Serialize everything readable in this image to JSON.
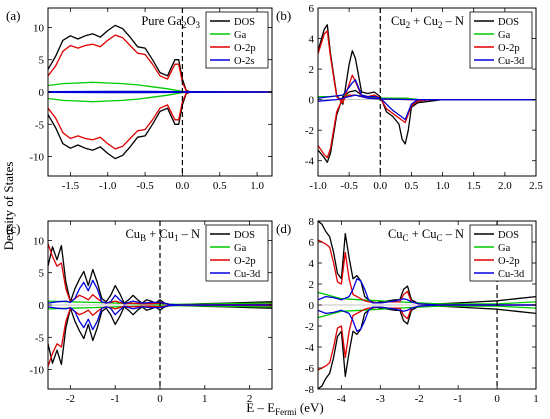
{
  "figure": {
    "ylabel": "Density of States",
    "xlabel_prefix": "E – E",
    "xlabel_sub": "Fermi",
    "xlabel_suffix": " (eV)"
  },
  "chart_data": [
    {
      "type": "line",
      "panel": "(a)",
      "title_parts": [
        {
          "t": "Pure Ga"
        },
        {
          "t": "2",
          "sub": true
        },
        {
          "t": "O"
        },
        {
          "t": "3",
          "sub": true
        }
      ],
      "xlim": [
        -1.8,
        1.2
      ],
      "ylim": [
        -13,
        13
      ],
      "xticks": [
        -1.5,
        -1.0,
        -0.5,
        0.0,
        0.5,
        1.0
      ],
      "xtick_labels": [
        "-1.5",
        "-1.0",
        "-0.5",
        "0.0",
        "0.5",
        "1.0"
      ],
      "yticks": [
        -10,
        -5,
        0,
        5,
        10
      ],
      "ytick_labels": [
        "-10",
        "-5",
        "0",
        "5",
        "10"
      ],
      "fermi": 0,
      "legend": "top-right",
      "series": [
        {
          "name": "DOS",
          "color": "#000000",
          "x": [
            -1.8,
            -1.7,
            -1.6,
            -1.5,
            -1.4,
            -1.3,
            -1.2,
            -1.1,
            -1.0,
            -0.9,
            -0.8,
            -0.7,
            -0.6,
            -0.5,
            -0.4,
            -0.3,
            -0.2,
            -0.1,
            -0.05,
            0.0,
            0.05,
            0.1,
            1.2
          ],
          "y": [
            3.5,
            5.5,
            8.0,
            8.7,
            8.2,
            8.7,
            9.0,
            8.5,
            9.5,
            10.3,
            9.8,
            8.5,
            7.0,
            6.8,
            5.0,
            3.0,
            2.5,
            5.0,
            5.0,
            2.0,
            0.3,
            0,
            0
          ],
          "mirror": true
        },
        {
          "name": "Ga",
          "color": "#00cc00",
          "x": [
            -1.8,
            -1.6,
            -1.4,
            -1.2,
            -1.0,
            -0.8,
            -0.6,
            -0.4,
            -0.2,
            0.0,
            0.1,
            1.2
          ],
          "y": [
            1.0,
            1.3,
            1.4,
            1.5,
            1.4,
            1.3,
            1.1,
            0.8,
            0.5,
            0.1,
            0,
            0
          ],
          "mirror": true
        },
        {
          "name": "O-2p",
          "color": "#e00000",
          "x": [
            -1.8,
            -1.7,
            -1.6,
            -1.5,
            -1.4,
            -1.3,
            -1.2,
            -1.1,
            -1.0,
            -0.9,
            -0.8,
            -0.7,
            -0.6,
            -0.5,
            -0.4,
            -0.3,
            -0.2,
            -0.1,
            -0.05,
            0.0,
            0.05,
            0.1,
            1.2
          ],
          "y": [
            2.5,
            4.0,
            6.3,
            7.2,
            6.8,
            7.2,
            7.4,
            7.0,
            8.0,
            8.8,
            8.4,
            7.2,
            6.0,
            5.8,
            4.3,
            2.5,
            2.0,
            4.3,
            4.3,
            1.5,
            0.2,
            0,
            0
          ],
          "mirror": true
        },
        {
          "name": "O-2s",
          "color": "#0000dd",
          "x": [
            -1.8,
            -1.0,
            -0.5,
            0.0,
            1.2
          ],
          "y": [
            0.05,
            0.1,
            0.1,
            0.05,
            0
          ],
          "mirror": true
        }
      ]
    },
    {
      "type": "line",
      "panel": "(b)",
      "title_parts": [
        {
          "t": "Cu"
        },
        {
          "t": "2",
          "sub": true
        },
        {
          "t": " + Cu"
        },
        {
          "t": "2",
          "sub": true
        },
        {
          "t": " – N"
        }
      ],
      "xlim": [
        -1.0,
        2.5
      ],
      "ylim": [
        -5,
        6
      ],
      "xticks": [
        -1.0,
        -0.5,
        0.0,
        0.5,
        1.0,
        1.5,
        2.0,
        2.5
      ],
      "xtick_labels": [
        "-1.0",
        "-0.5",
        "0.0",
        "0.5",
        "1.0",
        "1.5",
        "2.0",
        "2.5"
      ],
      "yticks": [
        -4,
        -2,
        0,
        2,
        4,
        6
      ],
      "ytick_labels": [
        "-4",
        "-2",
        "0",
        "2",
        "4",
        "6"
      ],
      "fermi": 0,
      "legend": "top-right",
      "series": [
        {
          "name": "DOS",
          "color": "#000000",
          "x": [
            -1.0,
            -0.9,
            -0.85,
            -0.8,
            -0.7,
            -0.6,
            -0.5,
            -0.45,
            -0.4,
            -0.3,
            -0.2,
            -0.1,
            0.0,
            0.1,
            0.2,
            0.3,
            0.35,
            0.4,
            0.45,
            0.5,
            0.6,
            0.8,
            1.0,
            1.5,
            2.0,
            2.5
          ],
          "y": [
            3.2,
            4.6,
            4.9,
            3.0,
            0.3,
            -0.3,
            2.3,
            3.2,
            2.7,
            0.5,
            0.4,
            0.5,
            0.2,
            -0.8,
            -1.1,
            -1.6,
            -2.6,
            -2.9,
            -2.0,
            -0.5,
            -0.2,
            -0.1,
            0,
            0,
            0,
            0
          ]
        },
        {
          "name": "DOS-down",
          "color": "#000000",
          "legend": false,
          "x": [
            -1.0,
            -0.9,
            -0.85,
            -0.8,
            -0.7,
            -0.6,
            -0.5,
            -0.4,
            -0.3,
            -0.2,
            -0.1,
            0.0,
            0.2,
            0.4,
            0.6,
            1.0,
            2.5
          ],
          "y": [
            -3.3,
            -3.8,
            -4.1,
            -3.5,
            -1.0,
            0.2,
            0.5,
            0.6,
            0.3,
            0.2,
            0.1,
            0.1,
            0.1,
            0.1,
            0,
            0,
            0
          ]
        },
        {
          "name": "Ga",
          "color": "#00cc00",
          "x": [
            -1.0,
            -0.8,
            -0.6,
            -0.4,
            -0.2,
            0.0,
            0.2,
            0.4,
            0.6,
            1.0,
            2.5
          ],
          "y": [
            0.2,
            0.2,
            0.3,
            0.3,
            0.2,
            0.1,
            0.1,
            0.1,
            0,
            0,
            0
          ]
        },
        {
          "name": "O-2p",
          "color": "#e00000",
          "x": [
            -1.0,
            -0.9,
            -0.85,
            -0.8,
            -0.7,
            -0.6,
            -0.5,
            -0.45,
            -0.4,
            -0.3,
            -0.2,
            -0.1,
            0.0,
            0.1,
            0.2,
            0.3,
            0.4,
            0.5,
            0.6,
            0.8,
            1.0,
            2.5
          ],
          "y": [
            3.0,
            4.3,
            4.5,
            2.8,
            0.2,
            -0.2,
            1.0,
            1.6,
            1.2,
            0.2,
            0.2,
            0.3,
            0.1,
            -0.6,
            -0.9,
            -1.2,
            -1.5,
            -0.4,
            -0.1,
            0,
            0,
            0
          ]
        },
        {
          "name": "O-2p-down",
          "color": "#e00000",
          "legend": false,
          "x": [
            -1.0,
            -0.9,
            -0.85,
            -0.8,
            -0.7,
            -0.6,
            -0.5,
            -0.4,
            -0.2,
            0.0,
            0.5,
            2.5
          ],
          "y": [
            -3.0,
            -3.6,
            -3.8,
            -3.2,
            -0.8,
            0.1,
            0.3,
            0.3,
            0.1,
            0.05,
            0,
            0
          ]
        },
        {
          "name": "Cu-3d",
          "color": "#0000dd",
          "x": [
            -1.0,
            -0.8,
            -0.6,
            -0.5,
            -0.45,
            -0.4,
            -0.3,
            -0.2,
            -0.1,
            0.0,
            0.1,
            0.2,
            0.3,
            0.4,
            0.5,
            0.6,
            1.0,
            2.5
          ],
          "y": [
            0.1,
            0.2,
            0.3,
            0.8,
            1.1,
            1.3,
            0.3,
            0.2,
            0.2,
            0.1,
            -0.3,
            -0.7,
            -1.0,
            -1.3,
            -0.3,
            0,
            0,
            0
          ]
        },
        {
          "name": "Cu-3d-down",
          "color": "#0000dd",
          "legend": false,
          "x": [
            -1.0,
            -0.7,
            -0.5,
            -0.4,
            -0.2,
            0.0,
            0.5,
            2.5
          ],
          "y": [
            -0.1,
            0.0,
            0.2,
            0.3,
            0.1,
            0.05,
            0,
            0
          ]
        }
      ]
    },
    {
      "type": "line",
      "panel": "(c)",
      "title_parts": [
        {
          "t": "Cu"
        },
        {
          "t": "B",
          "sub": true
        },
        {
          "t": " + Cu"
        },
        {
          "t": "1",
          "sub": true
        },
        {
          "t": " – N"
        }
      ],
      "xlim": [
        -2.5,
        2.5
      ],
      "ylim": [
        -13,
        13
      ],
      "xticks": [
        -2,
        -1,
        0,
        1,
        2
      ],
      "xtick_labels": [
        "-2",
        "-1",
        "0",
        "1",
        "2"
      ],
      "yticks": [
        -10,
        -5,
        0,
        5,
        10
      ],
      "ytick_labels": [
        "-10",
        "-5",
        "0",
        "5",
        "10"
      ],
      "fermi": 0,
      "legend": "top-right",
      "series": [
        {
          "name": "DOS",
          "color": "#000000",
          "x": [
            -2.5,
            -2.4,
            -2.3,
            -2.2,
            -2.1,
            -2.0,
            -1.9,
            -1.8,
            -1.7,
            -1.6,
            -1.5,
            -1.4,
            -1.3,
            -1.2,
            -1.1,
            -1.0,
            -0.9,
            -0.8,
            -0.7,
            -0.6,
            -0.5,
            -0.4,
            -0.3,
            -0.2,
            -0.1,
            0.0,
            0.1,
            0.3,
            0.5,
            1.0,
            1.5,
            2.0,
            2.5
          ],
          "y": [
            6.0,
            9.0,
            7.0,
            9.2,
            3.5,
            0.5,
            2.5,
            4.0,
            5.2,
            3.0,
            5.5,
            3.5,
            1.0,
            0.5,
            1.5,
            3.0,
            1.8,
            0.3,
            0.8,
            1.5,
            0.8,
            0.3,
            0.8,
            0.6,
            0.3,
            0.8,
            0.3,
            0,
            0.1,
            0.2,
            0.3,
            0.4,
            0.5
          ],
          "mirror": true
        },
        {
          "name": "Ga",
          "color": "#00cc00",
          "x": [
            -2.5,
            -2.0,
            -1.5,
            -1.0,
            -0.5,
            0.0,
            0.5,
            1.0,
            1.5,
            2.0,
            2.5
          ],
          "y": [
            0.6,
            0.5,
            0.4,
            0.3,
            0.2,
            0.15,
            0.1,
            0.15,
            0.2,
            0.25,
            0.3
          ],
          "mirror": true
        },
        {
          "name": "O-2p",
          "color": "#e00000",
          "x": [
            -2.5,
            -2.4,
            -2.3,
            -2.2,
            -2.1,
            -2.0,
            -1.9,
            -1.8,
            -1.7,
            -1.6,
            -1.5,
            -1.4,
            -1.3,
            -1.2,
            -1.1,
            -1.0,
            -0.9,
            -0.8,
            -0.6,
            -0.4,
            -0.2,
            0.0,
            0.2,
            0.5,
            2.5
          ],
          "y": [
            9.5,
            7.5,
            6.0,
            6.5,
            2.5,
            0.5,
            1.0,
            1.5,
            1.2,
            0.8,
            1.6,
            1.0,
            0.5,
            0.3,
            0.4,
            0.6,
            0.4,
            0.2,
            0.3,
            0.2,
            0.2,
            0.3,
            0.1,
            0,
            0.1
          ],
          "mirror": true
        },
        {
          "name": "Cu-3d",
          "color": "#0000dd",
          "x": [
            -2.5,
            -2.3,
            -2.1,
            -2.0,
            -1.9,
            -1.8,
            -1.7,
            -1.6,
            -1.5,
            -1.4,
            -1.3,
            -1.2,
            -1.1,
            -1.0,
            -0.9,
            -0.8,
            -0.6,
            -0.4,
            -0.2,
            0.0,
            0.2,
            0.5,
            2.5
          ],
          "y": [
            0.3,
            0.5,
            0.6,
            0.4,
            1.0,
            2.5,
            3.5,
            2.2,
            3.8,
            2.5,
            0.5,
            0.3,
            0.5,
            1.5,
            0.8,
            0.2,
            0.6,
            0.3,
            0.4,
            0.4,
            0.1,
            0,
            0
          ],
          "mirror": true
        }
      ]
    },
    {
      "type": "line",
      "panel": "(d)",
      "title_parts": [
        {
          "t": "Cu"
        },
        {
          "t": "C",
          "sub": true
        },
        {
          "t": " + Cu"
        },
        {
          "t": "C",
          "sub": true
        },
        {
          "t": " – N"
        }
      ],
      "xlim": [
        -4.6,
        1.0
      ],
      "ylim": [
        -8,
        8
      ],
      "xticks": [
        -4,
        -3,
        -2,
        -1,
        0,
        1
      ],
      "xtick_labels": [
        "-4",
        "-3",
        "-2",
        "-1",
        "0",
        "1"
      ],
      "yticks": [
        -8,
        -6,
        -4,
        -2,
        0,
        2,
        4,
        6,
        8
      ],
      "ytick_labels": [
        "-8",
        "-6",
        "-4",
        "-2",
        "0",
        "2",
        "4",
        "6",
        "8"
      ],
      "fermi": 0,
      "legend": "top-right",
      "series": [
        {
          "name": "DOS",
          "color": "#000000",
          "x": [
            -4.6,
            -4.5,
            -4.4,
            -4.3,
            -4.2,
            -4.1,
            -4.0,
            -3.9,
            -3.8,
            -3.7,
            -3.6,
            -3.5,
            -3.4,
            -3.3,
            -3.2,
            -3.1,
            -3.0,
            -2.8,
            -2.6,
            -2.5,
            -2.4,
            -2.3,
            -2.2,
            -2.0,
            -1.5,
            -1.0,
            -0.5,
            0.0,
            0.5,
            1.0
          ],
          "y": [
            8.0,
            7.7,
            7.0,
            6.5,
            5.0,
            3.0,
            2.5,
            6.8,
            4.5,
            2.5,
            2.8,
            2.3,
            0.8,
            0.5,
            0.3,
            0.2,
            0.3,
            0.4,
            0.5,
            0.5,
            1.5,
            1.8,
            0.5,
            0.1,
            0.1,
            0.2,
            0.3,
            0.4,
            0.6,
            0.8
          ],
          "mirror": true
        },
        {
          "name": "Ga",
          "color": "#00cc00",
          "x": [
            -4.6,
            -4.4,
            -4.2,
            -4.0,
            -3.5,
            -3.0,
            -2.5,
            -2.0,
            -1.5,
            -1.0,
            -0.5,
            0.0,
            0.5,
            1.0
          ],
          "y": [
            1.2,
            1.0,
            0.8,
            0.6,
            0.5,
            0.4,
            0.3,
            0.2,
            0.1,
            0.1,
            0.1,
            0.1,
            0.2,
            0.3
          ],
          "mirror": true
        },
        {
          "name": "O-2p",
          "color": "#e00000",
          "x": [
            -4.6,
            -4.5,
            -4.4,
            -4.3,
            -4.2,
            -4.1,
            -4.0,
            -3.9,
            -3.8,
            -3.7,
            -3.6,
            -3.5,
            -3.4,
            -3.3,
            -3.0,
            -2.8,
            -2.5,
            -2.4,
            -2.3,
            -2.2,
            -2.0,
            -1.5,
            -1.0,
            0.0,
            1.0
          ],
          "y": [
            6.2,
            6.0,
            5.8,
            5.5,
            4.0,
            2.2,
            2.0,
            5.0,
            2.5,
            1.0,
            0.8,
            0.6,
            0.4,
            0.3,
            0.2,
            0.3,
            0.3,
            1.0,
            1.3,
            0.3,
            0.1,
            0,
            0,
            0,
            0
          ],
          "mirror": true
        },
        {
          "name": "Cu-3d",
          "color": "#0000dd",
          "x": [
            -4.6,
            -4.4,
            -4.2,
            -4.0,
            -3.8,
            -3.7,
            -3.6,
            -3.5,
            -3.4,
            -3.3,
            -3.2,
            -3.0,
            -2.8,
            -2.6,
            -2.5,
            -2.4,
            -2.3,
            -2.2,
            -2.0,
            -1.5,
            -1.0,
            0.0,
            1.0
          ],
          "y": [
            0.5,
            0.8,
            0.7,
            0.5,
            0.8,
            1.5,
            2.5,
            2.3,
            1.5,
            0.5,
            0.2,
            0.2,
            0.3,
            0.4,
            0.5,
            0.6,
            0.5,
            0.3,
            0.1,
            0,
            0,
            0,
            0
          ],
          "mirror": true
        }
      ]
    }
  ]
}
